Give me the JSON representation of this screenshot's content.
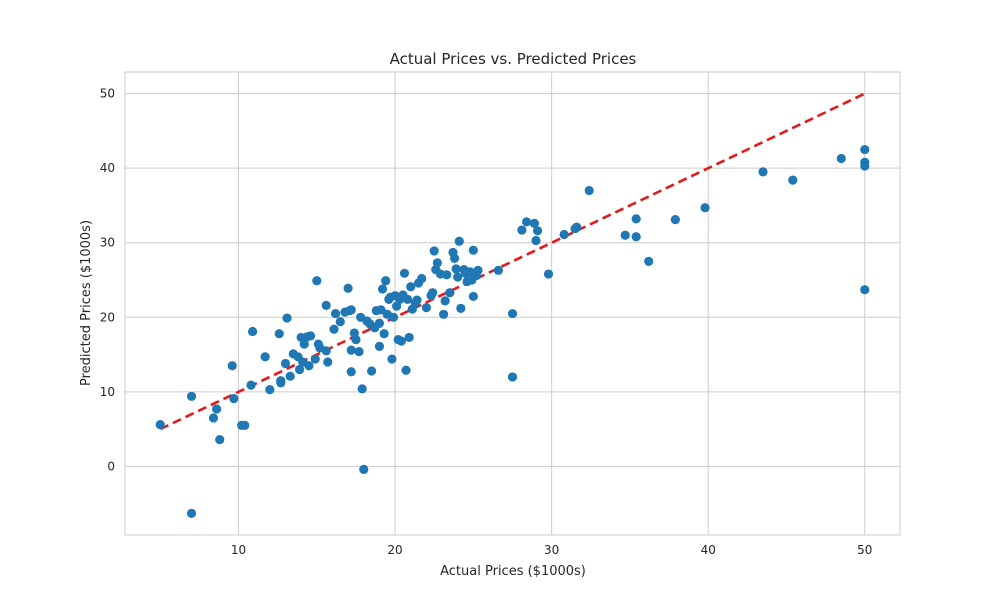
{
  "chart_data": {
    "type": "scatter",
    "title": "Actual Prices vs. Predicted Prices",
    "xlabel": "Actual Prices ($1000s)",
    "ylabel": "Predicted Prices ($1000s)",
    "xlim": [
      2.75,
      52.25
    ],
    "ylim": [
      -9.2,
      52.9
    ],
    "xticks": [
      10,
      20,
      30,
      40,
      50
    ],
    "yticks": [
      0,
      10,
      20,
      30,
      40,
      50
    ],
    "grid": true,
    "point_color": "#1f77b4",
    "reference_line": {
      "from": [
        5,
        5
      ],
      "to": [
        50,
        50
      ],
      "color": "#e31a1c",
      "style": "dashed"
    },
    "series": [
      {
        "points": [
          [
            5.0,
            5.6
          ],
          [
            7.0,
            -6.3
          ],
          [
            7.0,
            9.4
          ],
          [
            8.4,
            6.5
          ],
          [
            8.6,
            7.7
          ],
          [
            8.8,
            3.6
          ],
          [
            9.6,
            13.5
          ],
          [
            9.7,
            9.1
          ],
          [
            10.2,
            5.5
          ],
          [
            10.4,
            5.5
          ],
          [
            10.8,
            10.9
          ],
          [
            10.9,
            18.1
          ],
          [
            11.7,
            14.7
          ],
          [
            12.0,
            10.3
          ],
          [
            12.6,
            17.8
          ],
          [
            12.7,
            11.2
          ],
          [
            12.7,
            11.5
          ],
          [
            13.0,
            13.8
          ],
          [
            13.1,
            19.9
          ],
          [
            13.3,
            12.1
          ],
          [
            13.5,
            15.1
          ],
          [
            13.8,
            14.7
          ],
          [
            13.9,
            13.0
          ],
          [
            14.0,
            17.3
          ],
          [
            14.1,
            14.0
          ],
          [
            14.2,
            16.4
          ],
          [
            14.4,
            17.4
          ],
          [
            14.5,
            13.5
          ],
          [
            14.6,
            17.5
          ],
          [
            14.9,
            14.4
          ],
          [
            15.0,
            24.9
          ],
          [
            15.1,
            16.4
          ],
          [
            15.2,
            15.9
          ],
          [
            15.6,
            15.5
          ],
          [
            15.6,
            21.6
          ],
          [
            15.7,
            14.0
          ],
          [
            16.1,
            18.4
          ],
          [
            16.2,
            20.5
          ],
          [
            16.5,
            19.4
          ],
          [
            16.8,
            20.7
          ],
          [
            17.0,
            23.9
          ],
          [
            17.1,
            20.9
          ],
          [
            17.2,
            15.6
          ],
          [
            17.2,
            12.7
          ],
          [
            17.2,
            21.0
          ],
          [
            17.4,
            17.9
          ],
          [
            17.5,
            17.0
          ],
          [
            17.7,
            15.4
          ],
          [
            17.8,
            20.0
          ],
          [
            17.9,
            10.4
          ],
          [
            18.0,
            -0.4
          ],
          [
            18.2,
            19.5
          ],
          [
            18.4,
            19.1
          ],
          [
            18.5,
            12.8
          ],
          [
            18.7,
            18.6
          ],
          [
            18.8,
            20.9
          ],
          [
            19.0,
            19.2
          ],
          [
            19.0,
            16.1
          ],
          [
            19.1,
            21.0
          ],
          [
            19.2,
            23.8
          ],
          [
            19.3,
            17.8
          ],
          [
            19.4,
            24.9
          ],
          [
            19.5,
            20.4
          ],
          [
            19.6,
            22.4
          ],
          [
            19.7,
            22.7
          ],
          [
            19.8,
            14.4
          ],
          [
            19.9,
            20.0
          ],
          [
            20.0,
            22.9
          ],
          [
            20.1,
            21.5
          ],
          [
            20.2,
            17.0
          ],
          [
            20.3,
            22.4
          ],
          [
            20.4,
            16.8
          ],
          [
            20.5,
            23.0
          ],
          [
            20.6,
            25.9
          ],
          [
            20.7,
            12.9
          ],
          [
            20.8,
            22.4
          ],
          [
            20.9,
            17.3
          ],
          [
            21.0,
            24.1
          ],
          [
            21.1,
            21.1
          ],
          [
            21.3,
            21.9
          ],
          [
            21.4,
            22.3
          ],
          [
            21.5,
            24.6
          ],
          [
            21.7,
            25.2
          ],
          [
            22.0,
            21.3
          ],
          [
            22.3,
            22.9
          ],
          [
            22.4,
            23.3
          ],
          [
            22.5,
            28.9
          ],
          [
            22.6,
            26.4
          ],
          [
            22.7,
            27.3
          ],
          [
            22.9,
            25.8
          ],
          [
            23.1,
            20.4
          ],
          [
            23.2,
            22.2
          ],
          [
            23.3,
            25.7
          ],
          [
            23.5,
            23.3
          ],
          [
            23.7,
            28.7
          ],
          [
            23.8,
            27.9
          ],
          [
            23.9,
            26.5
          ],
          [
            24.0,
            25.4
          ],
          [
            24.1,
            30.2
          ],
          [
            24.2,
            21.2
          ],
          [
            24.4,
            26.4
          ],
          [
            24.5,
            25.9
          ],
          [
            24.6,
            24.8
          ],
          [
            24.8,
            26.1
          ],
          [
            24.9,
            25.0
          ],
          [
            25.0,
            29.0
          ],
          [
            25.0,
            22.8
          ],
          [
            25.2,
            25.6
          ],
          [
            25.3,
            26.3
          ],
          [
            26.6,
            26.3
          ],
          [
            27.5,
            12.0
          ],
          [
            27.5,
            20.5
          ],
          [
            28.1,
            31.7
          ],
          [
            28.4,
            32.8
          ],
          [
            28.9,
            32.6
          ],
          [
            29.0,
            30.3
          ],
          [
            29.1,
            31.6
          ],
          [
            29.8,
            25.8
          ],
          [
            30.8,
            31.1
          ],
          [
            31.5,
            31.9
          ],
          [
            31.6,
            32.1
          ],
          [
            32.4,
            37.0
          ],
          [
            34.7,
            31.0
          ],
          [
            35.4,
            33.2
          ],
          [
            35.4,
            30.8
          ],
          [
            36.2,
            27.5
          ],
          [
            37.9,
            33.1
          ],
          [
            39.8,
            34.7
          ],
          [
            43.5,
            39.5
          ],
          [
            45.4,
            38.4
          ],
          [
            48.5,
            41.3
          ],
          [
            50.0,
            42.5
          ],
          [
            50.0,
            40.8
          ],
          [
            50.0,
            40.3
          ],
          [
            50.0,
            23.7
          ]
        ]
      }
    ]
  }
}
